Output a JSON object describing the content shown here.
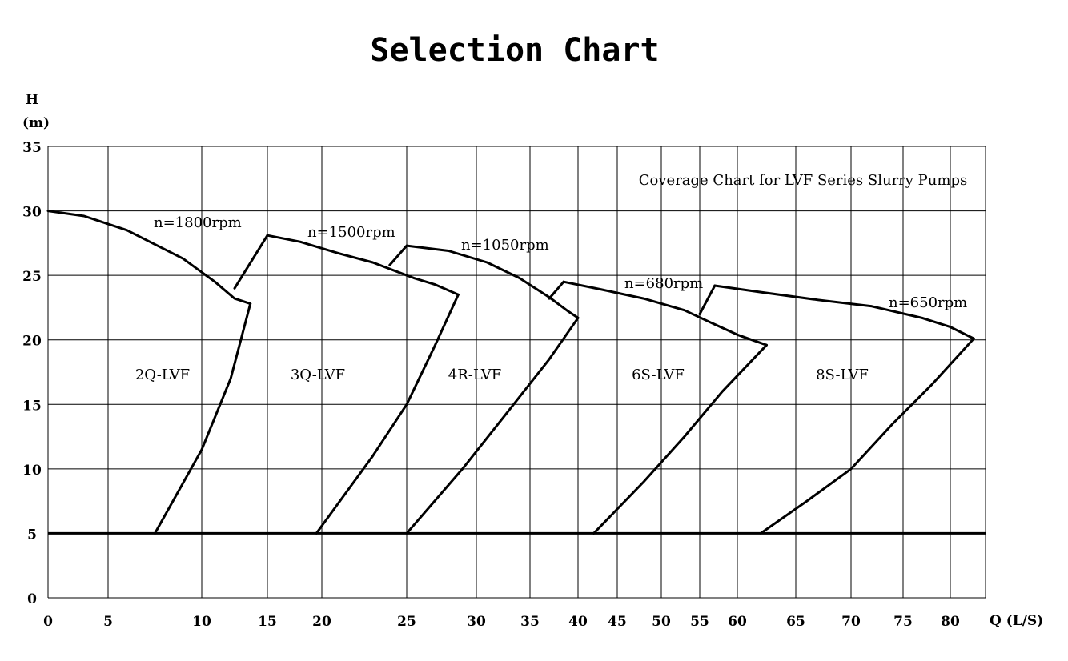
{
  "chart_data": {
    "type": "line",
    "title": "Selection Chart",
    "ylabel_line1": "H",
    "ylabel_line2": "(m)",
    "xlabel": "Q (L/S)",
    "annotation": "Coverage Chart for LVF Series Slurry Pumps",
    "xlim": [
      0,
      83
    ],
    "ylim": [
      0,
      35
    ],
    "x_ticks": [
      0,
      5,
      10,
      15,
      20,
      25,
      30,
      35,
      40,
      45,
      50,
      55,
      60,
      65,
      70,
      75,
      80
    ],
    "y_ticks": [
      0,
      5,
      10,
      15,
      20,
      25,
      30,
      35
    ],
    "grid": true,
    "baseline_head": 5,
    "pumps": [
      {
        "model": "2Q-LVF",
        "speed_label": "n=1800rpm",
        "head_curve": [
          [
            0,
            30
          ],
          [
            3,
            29.6
          ],
          [
            6,
            28.5
          ],
          [
            9,
            26.3
          ],
          [
            11,
            24.5
          ],
          [
            12.5,
            23.2
          ],
          [
            13.7,
            22.8
          ]
        ],
        "limit_curve": [
          [
            7.5,
            5
          ],
          [
            10,
            11.5
          ],
          [
            12.2,
            17
          ],
          [
            13.7,
            22.8
          ]
        ],
        "low_speed_link": [
          [
            12.5,
            24
          ],
          [
            15,
            28.1
          ]
        ]
      },
      {
        "model": "3Q-LVF",
        "speed_label": "n=1500rpm",
        "head_curve": [
          [
            15,
            28.1
          ],
          [
            18,
            27.6
          ],
          [
            21,
            26.7
          ],
          [
            23,
            26
          ],
          [
            25.5,
            24.8
          ],
          [
            27,
            24.3
          ],
          [
            28.7,
            23.5
          ]
        ],
        "limit_curve": [
          [
            19.5,
            5
          ],
          [
            23,
            11
          ],
          [
            25,
            15
          ],
          [
            27,
            19.5
          ],
          [
            28.7,
            23.5
          ]
        ],
        "low_speed_link": [
          [
            24,
            25.8
          ],
          [
            25,
            27.3
          ]
        ]
      },
      {
        "model": "4R-LVF",
        "speed_label": "n=1050rpm",
        "head_curve": [
          [
            25,
            27.3
          ],
          [
            28,
            26.9
          ],
          [
            31,
            26
          ],
          [
            34,
            24.8
          ],
          [
            37,
            23.3
          ],
          [
            39,
            22.2
          ],
          [
            40,
            21.7
          ]
        ],
        "limit_curve": [
          [
            25,
            5
          ],
          [
            29,
            10
          ],
          [
            33,
            14.5
          ],
          [
            37,
            18.5
          ],
          [
            40,
            21.7
          ]
        ],
        "low_speed_link": [
          [
            37,
            23.2
          ],
          [
            38.5,
            24.5
          ]
        ]
      },
      {
        "model": "6S-LVF",
        "speed_label": "n=680rpm",
        "head_curve": [
          [
            38.5,
            24.5
          ],
          [
            43,
            23.9
          ],
          [
            48,
            23.2
          ],
          [
            53,
            22.3
          ],
          [
            57,
            21.2
          ],
          [
            60,
            20.4
          ],
          [
            62.5,
            19.6
          ]
        ],
        "limit_curve": [
          [
            42,
            5
          ],
          [
            48,
            9
          ],
          [
            53,
            12.5
          ],
          [
            58,
            16
          ],
          [
            62.5,
            19.6
          ]
        ],
        "low_speed_link": [
          [
            55,
            22
          ],
          [
            57,
            24.2
          ]
        ]
      },
      {
        "model": "8S-LVF",
        "speed_label": "n=650rpm",
        "head_curve": [
          [
            57,
            24.2
          ],
          [
            62,
            23.7
          ],
          [
            67,
            23.1
          ],
          [
            72,
            22.6
          ],
          [
            77,
            21.7
          ],
          [
            80,
            21
          ],
          [
            82,
            20.1
          ]
        ],
        "limit_curve": [
          [
            62,
            5
          ],
          [
            66,
            7.5
          ],
          [
            70,
            10
          ],
          [
            74,
            13.5
          ],
          [
            78,
            16.5
          ],
          [
            82,
            20.1
          ]
        ]
      }
    ]
  }
}
